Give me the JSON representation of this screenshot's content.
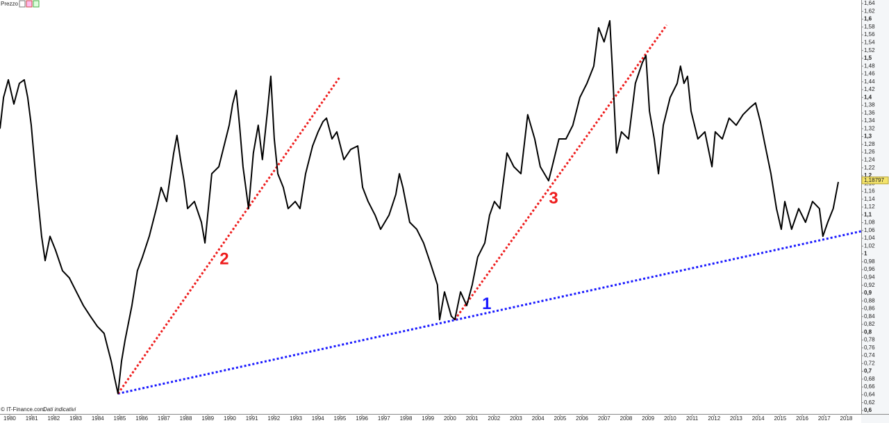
{
  "chart_data": {
    "type": "line",
    "title": "Prezzo",
    "source": "© IT-Finance.com",
    "note": "Dati indicativi",
    "xlim": [
      1979.56,
      2018.68
    ],
    "ylim": [
      0.591,
      1.649
    ],
    "xticks": [
      1980,
      1981,
      1982,
      1983,
      1984,
      1985,
      1986,
      1987,
      1988,
      1989,
      1990,
      1991,
      1992,
      1993,
      1994,
      1995,
      1996,
      1997,
      1998,
      1999,
      2000,
      2001,
      2002,
      2003,
      2004,
      2005,
      2006,
      2007,
      2008,
      2009,
      2010,
      2011,
      2012,
      2013,
      2014,
      2015,
      2016,
      2017,
      2018
    ],
    "yticks": [
      {
        "value": 0.6,
        "label": "0,6"
      },
      {
        "value": 0.62,
        "label": "0,62"
      },
      {
        "value": 0.64,
        "label": "0,64"
      },
      {
        "value": 0.66,
        "label": "0,66"
      },
      {
        "value": 0.68,
        "label": "0,68"
      },
      {
        "value": 0.7,
        "label": "0,7"
      },
      {
        "value": 0.72,
        "label": "0,72"
      },
      {
        "value": 0.74,
        "label": "0,74"
      },
      {
        "value": 0.76,
        "label": "0,76"
      },
      {
        "value": 0.78,
        "label": "0,78"
      },
      {
        "value": 0.8,
        "label": "0,8"
      },
      {
        "value": 0.82,
        "label": "0,82"
      },
      {
        "value": 0.84,
        "label": "0,84"
      },
      {
        "value": 0.86,
        "label": "0,86"
      },
      {
        "value": 0.88,
        "label": "0,88"
      },
      {
        "value": 0.9,
        "label": "0,9"
      },
      {
        "value": 0.92,
        "label": "0,92"
      },
      {
        "value": 0.94,
        "label": "0,94"
      },
      {
        "value": 0.96,
        "label": "0,96"
      },
      {
        "value": 0.98,
        "label": "0,98"
      },
      1,
      {
        "value": 1.02,
        "label": "1,02"
      },
      {
        "value": 1.04,
        "label": "1,04"
      },
      {
        "value": 1.06,
        "label": "1,06"
      },
      {
        "value": 1.08,
        "label": "1,08"
      },
      {
        "value": 1.1,
        "label": "1,1"
      },
      {
        "value": 1.12,
        "label": "1,12"
      },
      {
        "value": 1.14,
        "label": "1,14"
      },
      {
        "value": 1.16,
        "label": "1,16"
      },
      {
        "value": 1.18,
        "label": "1,18"
      },
      {
        "value": 1.2,
        "label": "1,2"
      },
      {
        "value": 1.22,
        "label": "1,22"
      },
      {
        "value": 1.24,
        "label": "1,24"
      },
      {
        "value": 1.26,
        "label": "1,26"
      },
      {
        "value": 1.28,
        "label": "1,28"
      },
      {
        "value": 1.3,
        "label": "1,3"
      },
      {
        "value": 1.32,
        "label": "1,32"
      },
      {
        "value": 1.34,
        "label": "1,34"
      },
      {
        "value": 1.36,
        "label": "1,36"
      },
      {
        "value": 1.38,
        "label": "1,38"
      },
      {
        "value": 1.4,
        "label": "1,4"
      },
      {
        "value": 1.42,
        "label": "1,42"
      },
      {
        "value": 1.44,
        "label": "1,44"
      },
      {
        "value": 1.46,
        "label": "1,46"
      },
      {
        "value": 1.48,
        "label": "1,48"
      },
      {
        "value": 1.5,
        "label": "1,5"
      },
      {
        "value": 1.52,
        "label": "1,52"
      },
      {
        "value": 1.54,
        "label": "1,54"
      },
      {
        "value": 1.56,
        "label": "1,56"
      },
      {
        "value": 1.58,
        "label": "1,58"
      },
      {
        "value": 1.6,
        "label": "1,6"
      },
      {
        "value": 1.62,
        "label": "1,62"
      },
      {
        "value": 1.64,
        "label": "1,64"
      }
    ],
    "series": [
      {
        "color": "#000000",
        "x": [
          1979.56,
          1979.72,
          1979.94,
          1980.19,
          1980.44,
          1980.66,
          1980.82,
          1980.98,
          1981.2,
          1981.45,
          1981.61,
          1981.83,
          1982.08,
          1982.4,
          1982.71,
          1983.03,
          1983.35,
          1983.66,
          1983.98,
          1984.29,
          1984.45,
          1984.61,
          1984.77,
          1984.92,
          1985.08,
          1985.24,
          1985.55,
          1985.8,
          1986.03,
          1986.34,
          1986.66,
          1986.88,
          1987.13,
          1987.45,
          1987.6,
          1987.76,
          1987.92,
          1988.08,
          1988.39,
          1988.71,
          1988.87,
          1989.18,
          1989.5,
          1989.97,
          1990.13,
          1990.29,
          1990.44,
          1990.6,
          1990.85,
          1991.07,
          1991.29,
          1991.48,
          1991.71,
          1991.86,
          1992.02,
          1992.18,
          1992.43,
          1992.65,
          1992.97,
          1993.19,
          1993.44,
          1993.76,
          1994.01,
          1994.23,
          1994.39,
          1994.64,
          1994.86,
          1995.18,
          1995.49,
          1995.81,
          1996.03,
          1996.28,
          1996.6,
          1996.85,
          1997.23,
          1997.54,
          1997.7,
          1997.86,
          1998.17,
          1998.49,
          1998.8,
          1999.12,
          1999.43,
          1999.53,
          1999.75,
          2000.06,
          2000.22,
          2000.48,
          2000.76,
          2001.01,
          2001.26,
          2001.58,
          2001.8,
          2002.02,
          2002.27,
          2002.59,
          2002.9,
          2003.22,
          2003.53,
          2003.85,
          2004.1,
          2004.48,
          2004.64,
          2004.95,
          2005.27,
          2005.58,
          2005.9,
          2006.22,
          2006.53,
          2006.75,
          2007.0,
          2007.26,
          2007.38,
          2007.57,
          2007.79,
          2008.11,
          2008.42,
          2008.74,
          2008.9,
          2009.06,
          2009.28,
          2009.47,
          2009.69,
          2010.0,
          2010.32,
          2010.47,
          2010.63,
          2010.79,
          2010.95,
          2011.26,
          2011.58,
          2011.9,
          2012.05,
          2012.37,
          2012.68,
          2013.0,
          2013.31,
          2013.63,
          2013.88,
          2014.1,
          2014.32,
          2014.58,
          2014.83,
          2015.05,
          2015.21,
          2015.52,
          2015.84,
          2016.15,
          2016.47,
          2016.78,
          2016.94,
          2017.16,
          2017.41,
          2017.64
        ],
        "values": [
          1.32,
          1.4,
          1.445,
          1.383,
          1.436,
          1.445,
          1.4,
          1.329,
          1.187,
          1.045,
          0.983,
          1.045,
          1.01,
          0.957,
          0.939,
          0.903,
          0.868,
          0.841,
          0.815,
          0.797,
          0.761,
          0.726,
          0.682,
          0.643,
          0.726,
          0.779,
          0.868,
          0.957,
          0.992,
          1.045,
          1.116,
          1.17,
          1.134,
          1.258,
          1.303,
          1.241,
          1.187,
          1.116,
          1.134,
          1.081,
          1.028,
          1.205,
          1.223,
          1.329,
          1.383,
          1.418,
          1.329,
          1.223,
          1.116,
          1.258,
          1.329,
          1.241,
          1.365,
          1.454,
          1.294,
          1.205,
          1.17,
          1.116,
          1.134,
          1.116,
          1.205,
          1.276,
          1.312,
          1.338,
          1.347,
          1.294,
          1.312,
          1.241,
          1.267,
          1.276,
          1.17,
          1.134,
          1.099,
          1.063,
          1.099,
          1.152,
          1.205,
          1.17,
          1.081,
          1.063,
          1.028,
          0.975,
          0.921,
          0.832,
          0.903,
          0.841,
          0.832,
          0.903,
          0.868,
          0.921,
          0.992,
          1.028,
          1.099,
          1.134,
          1.116,
          1.258,
          1.223,
          1.205,
          1.356,
          1.294,
          1.223,
          1.187,
          1.223,
          1.294,
          1.294,
          1.329,
          1.4,
          1.436,
          1.48,
          1.578,
          1.542,
          1.596,
          1.471,
          1.258,
          1.312,
          1.294,
          1.436,
          1.489,
          1.507,
          1.365,
          1.294,
          1.205,
          1.329,
          1.4,
          1.436,
          1.48,
          1.436,
          1.454,
          1.365,
          1.294,
          1.312,
          1.223,
          1.312,
          1.294,
          1.347,
          1.329,
          1.356,
          1.374,
          1.386,
          1.338,
          1.276,
          1.205,
          1.116,
          1.063,
          1.134,
          1.063,
          1.116,
          1.081,
          1.134,
          1.116,
          1.045,
          1.081,
          1.116,
          1.184
        ]
      }
    ],
    "last_value": {
      "value": 1.18797,
      "label": "1,18797"
    },
    "trendlines": [
      {
        "label": "1",
        "color": "#1a1aff",
        "x": [
          1984.92,
          2018.68
        ],
        "y": [
          0.643,
          1.058
        ]
      },
      {
        "label": "2",
        "color": "#ee1c1c",
        "x": [
          1984.92,
          1995.02
        ],
        "y": [
          0.643,
          1.454
        ]
      },
      {
        "label": "3",
        "color": "#ee1c1c",
        "x": [
          2000.22,
          2009.84
        ],
        "y": [
          0.832,
          1.585
        ]
      }
    ]
  }
}
